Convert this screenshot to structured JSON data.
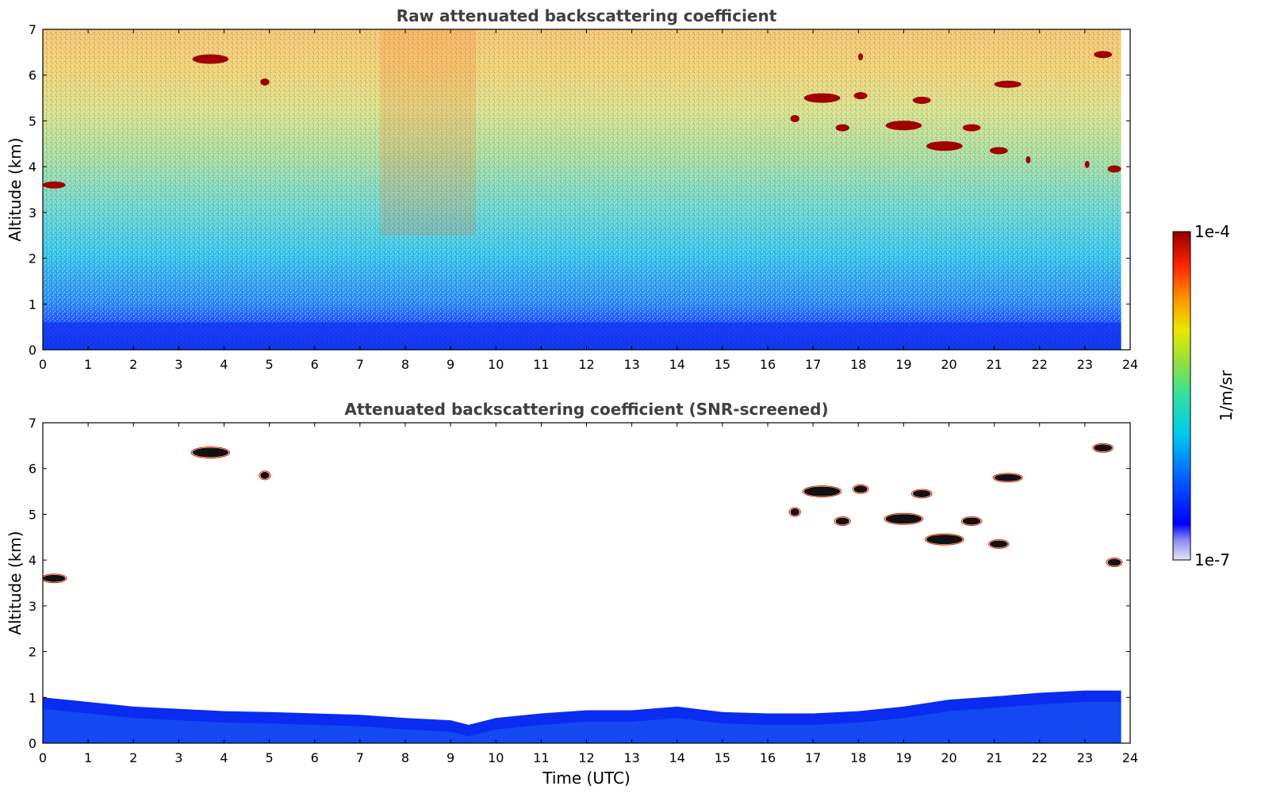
{
  "figure": {
    "colorbar": {
      "label": "1/m/sr",
      "max_label": "1e-4",
      "min_label": "1e-7",
      "scale": "log",
      "colormap": "jet",
      "range": [
        1e-07,
        0.0001
      ]
    },
    "xlabel": "Time (UTC)"
  },
  "chart_data": [
    {
      "type": "heatmap",
      "title": "Raw attenuated backscattering coefficient",
      "xlabel": "",
      "ylabel": "Altitude (km)",
      "xlim": [
        0,
        24
      ],
      "ylim": [
        0,
        7
      ],
      "xticks": [
        "0",
        "1",
        "2",
        "3",
        "4",
        "5",
        "6",
        "7",
        "8",
        "9",
        "10",
        "11",
        "12",
        "13",
        "14",
        "15",
        "16",
        "17",
        "18",
        "19",
        "20",
        "21",
        "22",
        "23",
        "24"
      ],
      "yticks": [
        "0",
        "1",
        "2",
        "3",
        "4",
        "5",
        "6",
        "7"
      ],
      "data_extent_x": [
        0,
        23.8
      ],
      "background": "noisy signal increasing with altitude: dense blue below ~1 km, cyan/green 2-4 km, yellow/orange aloft",
      "cloud_features": [
        {
          "t0": 0.0,
          "t1": 0.5,
          "alt": 3.6
        },
        {
          "t0": 3.3,
          "t1": 4.1,
          "alt": 6.35
        },
        {
          "t0": 4.8,
          "t1": 5.0,
          "alt": 5.85
        },
        {
          "t0": 16.5,
          "t1": 16.7,
          "alt": 5.05
        },
        {
          "t0": 16.8,
          "t1": 17.6,
          "alt": 5.5
        },
        {
          "t0": 17.5,
          "t1": 17.8,
          "alt": 4.85
        },
        {
          "t0": 17.9,
          "t1": 18.2,
          "alt": 5.55
        },
        {
          "t0": 18.0,
          "t1": 18.1,
          "alt": 6.4
        },
        {
          "t0": 18.6,
          "t1": 19.4,
          "alt": 4.9
        },
        {
          "t0": 19.2,
          "t1": 19.6,
          "alt": 5.45
        },
        {
          "t0": 19.5,
          "t1": 20.3,
          "alt": 4.45
        },
        {
          "t0": 20.3,
          "t1": 20.7,
          "alt": 4.85
        },
        {
          "t0": 20.9,
          "t1": 21.3,
          "alt": 4.35
        },
        {
          "t0": 21.0,
          "t1": 21.6,
          "alt": 5.8
        },
        {
          "t0": 21.7,
          "t1": 21.8,
          "alt": 4.15
        },
        {
          "t0": 23.0,
          "t1": 23.1,
          "alt": 4.05
        },
        {
          "t0": 23.2,
          "t1": 23.6,
          "alt": 6.45
        },
        {
          "t0": 23.5,
          "t1": 23.8,
          "alt": 3.95
        }
      ]
    },
    {
      "type": "heatmap",
      "title": "Attenuated backscattering coefficient (SNR-screened)",
      "xlabel": "Time (UTC)",
      "ylabel": "Altitude (km)",
      "xlim": [
        0,
        24
      ],
      "ylim": [
        0,
        7
      ],
      "xticks": [
        "0",
        "1",
        "2",
        "3",
        "4",
        "5",
        "6",
        "7",
        "8",
        "9",
        "10",
        "11",
        "12",
        "13",
        "14",
        "15",
        "16",
        "17",
        "18",
        "19",
        "20",
        "21",
        "22",
        "23",
        "24"
      ],
      "yticks": [
        "0",
        "1",
        "2",
        "3",
        "4",
        "5",
        "6",
        "7"
      ],
      "data_extent_x": [
        0,
        23.8
      ],
      "boundary_layer_top_km": [
        {
          "t": 0,
          "alt": 1.0
        },
        {
          "t": 1,
          "alt": 0.9
        },
        {
          "t": 2,
          "alt": 0.8
        },
        {
          "t": 3,
          "alt": 0.75
        },
        {
          "t": 4,
          "alt": 0.7
        },
        {
          "t": 5,
          "alt": 0.68
        },
        {
          "t": 6,
          "alt": 0.65
        },
        {
          "t": 7,
          "alt": 0.62
        },
        {
          "t": 8,
          "alt": 0.55
        },
        {
          "t": 9,
          "alt": 0.5
        },
        {
          "t": 9.4,
          "alt": 0.4
        },
        {
          "t": 10,
          "alt": 0.55
        },
        {
          "t": 11,
          "alt": 0.65
        },
        {
          "t": 12,
          "alt": 0.72
        },
        {
          "t": 13,
          "alt": 0.72
        },
        {
          "t": 14,
          "alt": 0.8
        },
        {
          "t": 15,
          "alt": 0.68
        },
        {
          "t": 16,
          "alt": 0.65
        },
        {
          "t": 17,
          "alt": 0.65
        },
        {
          "t": 18,
          "alt": 0.7
        },
        {
          "t": 19,
          "alt": 0.8
        },
        {
          "t": 20,
          "alt": 0.95
        },
        {
          "t": 21,
          "alt": 1.02
        },
        {
          "t": 22,
          "alt": 1.1
        },
        {
          "t": 23,
          "alt": 1.15
        },
        {
          "t": 23.8,
          "alt": 1.15
        }
      ],
      "cloud_features": [
        {
          "t0": 0.0,
          "t1": 0.5,
          "alt": 3.6
        },
        {
          "t0": 3.3,
          "t1": 4.1,
          "alt": 6.35
        },
        {
          "t0": 4.8,
          "t1": 5.0,
          "alt": 5.85
        },
        {
          "t0": 16.5,
          "t1": 16.7,
          "alt": 5.05
        },
        {
          "t0": 16.8,
          "t1": 17.6,
          "alt": 5.5
        },
        {
          "t0": 17.5,
          "t1": 17.8,
          "alt": 4.85
        },
        {
          "t0": 17.9,
          "t1": 18.2,
          "alt": 5.55
        },
        {
          "t0": 18.6,
          "t1": 19.4,
          "alt": 4.9
        },
        {
          "t0": 19.2,
          "t1": 19.6,
          "alt": 5.45
        },
        {
          "t0": 19.5,
          "t1": 20.3,
          "alt": 4.45
        },
        {
          "t0": 20.3,
          "t1": 20.7,
          "alt": 4.85
        },
        {
          "t0": 20.9,
          "t1": 21.3,
          "alt": 4.35
        },
        {
          "t0": 21.0,
          "t1": 21.6,
          "alt": 5.8
        },
        {
          "t0": 23.2,
          "t1": 23.6,
          "alt": 6.45
        },
        {
          "t0": 23.5,
          "t1": 23.8,
          "alt": 3.95
        }
      ]
    }
  ]
}
